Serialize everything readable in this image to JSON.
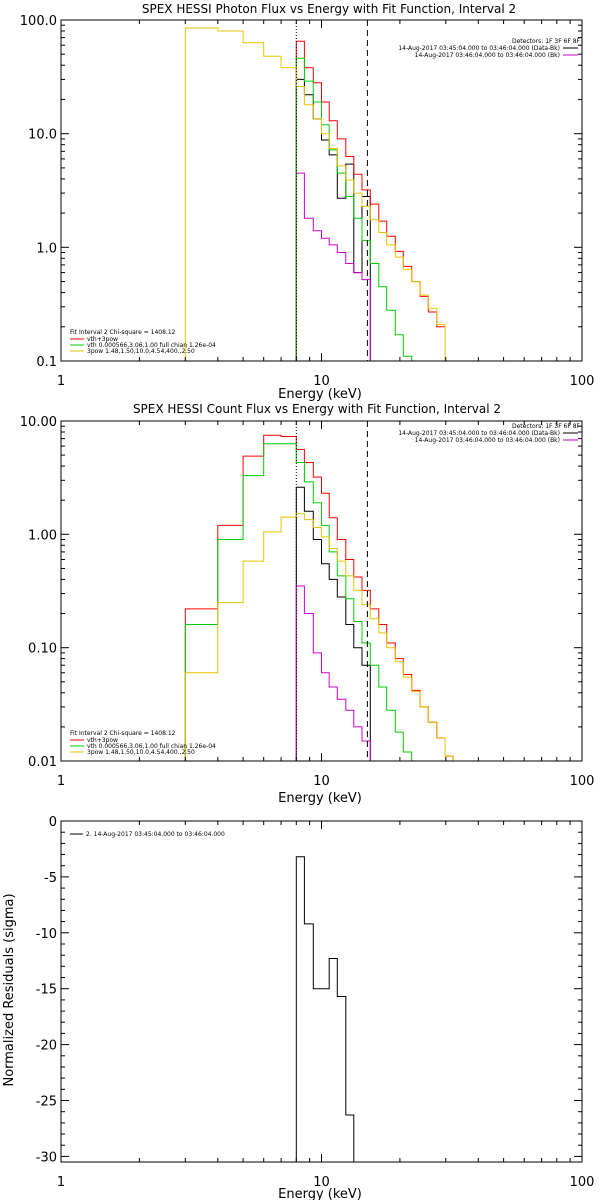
{
  "chart_data": [
    {
      "type": "line",
      "title": "SPEX HESSI Photon Flux vs Energy with Fit Function, Interval 2",
      "xlabel": "Energy (keV)",
      "ylabel": "",
      "xscale": "log",
      "yscale": "log",
      "xlim": [
        1,
        100
      ],
      "ylim": [
        0.1,
        100
      ],
      "x_ticks": [
        "1",
        "10",
        "100"
      ],
      "y_ticks": [
        "0.1",
        "1.0",
        "10.0",
        "100.0"
      ],
      "top_right": {
        "detectors": "Detectors: 1F 3F 6F 8F",
        "lines": [
          {
            "text": "14-Aug-2017 03:45:04.000 to 03:46:04.000 (Data-Bk)",
            "color": "#000000"
          },
          {
            "text": "14-Aug-2017 03:46:04.000 to 03:46:04.000 (Bk)",
            "color": "#cc00cc"
          }
        ]
      },
      "bottom_left": {
        "fit_line": "Fit Interval 2   Chi-square = 1408.12",
        "entries": [
          {
            "text": "vth+3pow",
            "color": "#ff0000"
          },
          {
            "text": "vth 0.000566,3.06,1.00  full chian 1.26e-04",
            "color": "#00cc00"
          },
          {
            "text": "3pow 1.48,1.50,10.0,4.54,400.,2.50",
            "color": "#e6c300"
          }
        ]
      },
      "vlines": [
        {
          "x": 8,
          "style": "dotted",
          "color": "#000000"
        },
        {
          "x": 15,
          "style": "dashed",
          "color": "#000000"
        }
      ],
      "series": [
        {
          "color": "#000000",
          "edges": [
            8,
            8.6,
            9.3,
            10,
            10.7,
            11.5,
            12.4,
            13.3,
            14.3,
            15.4
          ],
          "values": [
            30,
            22,
            13.5,
            8.8,
            6.5,
            2.7,
            5.4,
            0.6,
            2.8
          ]
        },
        {
          "color": "#cc00cc",
          "edges": [
            8,
            8.6,
            9.3,
            10,
            10.7,
            11.5,
            12.4,
            13.3,
            14.3,
            15.4
          ],
          "values": [
            4.5,
            1.8,
            1.4,
            1.2,
            1.05,
            0.9,
            0.72,
            0.6,
            0.52
          ]
        },
        {
          "color": "#ff0000",
          "edges": [
            8,
            8.6,
            9.3,
            10,
            10.7,
            11.5,
            12.4,
            13.3,
            14.3,
            15.4,
            16.6,
            17.8,
            19.2,
            20.6,
            22.2,
            23.9,
            25.7,
            27.7,
            29.8
          ],
          "values": [
            65,
            38,
            28,
            19,
            13,
            9,
            6.3,
            4.4,
            3.2,
            2.4,
            1.7,
            1.25,
            0.92,
            0.68,
            0.5,
            0.37,
            0.27,
            0.2
          ]
        },
        {
          "color": "#00cc00",
          "edges": [
            8,
            8.6,
            9.3,
            10,
            10.7,
            11.5,
            12.4,
            13.3,
            14.3,
            15.4,
            16.6,
            17.8,
            19.2,
            20.6,
            22.2
          ],
          "values": [
            46,
            29,
            19,
            12,
            7.2,
            4.5,
            2.8,
            1.8,
            1.15,
            0.72,
            0.45,
            0.28,
            0.17,
            0.11
          ]
        },
        {
          "color": "#e6c300",
          "edges": [
            3,
            4,
            5,
            6,
            7,
            8,
            8.6,
            9.3,
            10,
            10.7,
            11.5,
            12.4,
            13.3,
            14.3,
            15.4,
            16.6,
            17.8,
            19.2,
            20.6,
            22.2,
            23.9,
            25.7,
            27.7,
            29.8
          ],
          "values": [
            85,
            80,
            63,
            48,
            38,
            26,
            18,
            13.5,
            10,
            7.4,
            5.2,
            3.9,
            3,
            2.3,
            1.75,
            1.35,
            1.05,
            0.82,
            0.64,
            0.5,
            0.38,
            0.29,
            0.21
          ]
        }
      ]
    },
    {
      "type": "line",
      "title": "SPEX HESSI Count Flux vs Energy with Fit Function, Interval 2",
      "xlabel": "Energy (keV)",
      "ylabel": "",
      "xscale": "log",
      "yscale": "log",
      "xlim": [
        1,
        100
      ],
      "ylim": [
        0.01,
        10
      ],
      "x_ticks": [
        "1",
        "10",
        "100"
      ],
      "y_ticks": [
        "0.01",
        "0.10",
        "1.00",
        "10.00"
      ],
      "top_right": {
        "detectors": "Detectors: 1F 3F 6F 8F",
        "lines": [
          {
            "text": "14-Aug-2017 03:45:04.000 to 03:46:04.000 (Data-Bk)",
            "color": "#000000"
          },
          {
            "text": "14-Aug-2017 03:46:04.000 to 03:46:04.000 (Bk)",
            "color": "#cc00cc"
          }
        ]
      },
      "bottom_left": {
        "fit_line": "Fit Interval 2   Chi-square = 1408.12",
        "entries": [
          {
            "text": "vth+3pow",
            "color": "#ff0000"
          },
          {
            "text": "vth 0.000566,3.06,1.00  full chian 1.26e-04",
            "color": "#00cc00"
          },
          {
            "text": "3pow 1.48,1.50,10.0,4.54,400.,2.50",
            "color": "#e6c300"
          }
        ]
      },
      "vlines": [
        {
          "x": 8,
          "style": "dotted",
          "color": "#000000"
        },
        {
          "x": 15,
          "style": "dashed",
          "color": "#000000"
        }
      ],
      "series": [
        {
          "color": "#000000",
          "edges": [
            8,
            8.6,
            9.3,
            10,
            10.7,
            11.5,
            12.4,
            13.3,
            14.3,
            15.4
          ],
          "values": [
            2.6,
            1.6,
            0.9,
            0.55,
            0.4,
            0.28,
            0.16,
            0.1,
            0.07
          ]
        },
        {
          "color": "#cc00cc",
          "edges": [
            8,
            8.6,
            9.3,
            10,
            10.7,
            11.5,
            12.4,
            13.3,
            14.3,
            15.4
          ],
          "values": [
            0.35,
            0.2,
            0.09,
            0.06,
            0.045,
            0.035,
            0.028,
            0.02,
            0.015
          ]
        },
        {
          "color": "#ff0000",
          "edges": [
            3,
            4,
            5,
            6,
            7,
            8,
            8.6,
            9.3,
            10,
            10.7,
            11.5,
            12.4,
            13.3,
            14.3,
            15.4,
            16.6,
            17.8,
            19.2,
            20.6,
            22.2,
            23.9,
            25.7,
            27.7,
            29.8,
            32
          ],
          "values": [
            0.22,
            1.2,
            4.9,
            7.5,
            7.3,
            5.6,
            4.3,
            3.2,
            2.3,
            1.4,
            0.9,
            0.6,
            0.42,
            0.32,
            0.22,
            0.16,
            0.11,
            0.08,
            0.058,
            0.042,
            0.03,
            0.022,
            0.016,
            0.011
          ]
        },
        {
          "color": "#00cc00",
          "edges": [
            3,
            4,
            5,
            6,
            7,
            8,
            8.6,
            9.3,
            10,
            10.7,
            11.5,
            12.4,
            13.3,
            14.3,
            15.4,
            16.6,
            17.8,
            19.2,
            20.6,
            22.2
          ],
          "values": [
            0.16,
            0.9,
            3.3,
            6.3,
            6.3,
            4.3,
            2.9,
            1.9,
            1.2,
            0.7,
            0.43,
            0.27,
            0.17,
            0.11,
            0.07,
            0.045,
            0.028,
            0.018,
            0.012
          ]
        },
        {
          "color": "#e6c300",
          "edges": [
            3,
            4,
            5,
            6,
            7,
            8,
            8.6,
            9.3,
            10,
            10.7,
            11.5,
            12.4,
            13.3,
            14.3,
            15.4,
            16.6,
            17.8,
            19.2,
            20.6,
            22.2,
            23.9,
            25.7,
            27.7,
            29.8,
            32
          ],
          "values": [
            0.06,
            0.25,
            0.58,
            1.05,
            1.42,
            1.52,
            1.35,
            1.15,
            0.95,
            0.75,
            0.58,
            0.43,
            0.32,
            0.24,
            0.18,
            0.135,
            0.1,
            0.075,
            0.055,
            0.041,
            0.03,
            0.022,
            0.016,
            0.011
          ]
        }
      ]
    },
    {
      "type": "line",
      "title": "",
      "xlabel": "Energy (keV)",
      "ylabel": "Normalized Residuals (sigma)",
      "xscale": "log",
      "yscale": "linear",
      "xlim": [
        1,
        100
      ],
      "ylim": [
        -30.5,
        0
      ],
      "x_ticks": [
        "1",
        "10",
        "100"
      ],
      "y_ticks": [
        "0",
        "-5",
        "-10",
        "-15",
        "-20",
        "-25",
        "-30"
      ],
      "legend": {
        "text": "2. 14-Aug-2017 03:45:04.000 to 03:46:04.000",
        "color": "#000000"
      },
      "series": [
        {
          "color": "#000000",
          "edges": [
            8,
            8.6,
            9.3,
            10,
            10.7,
            11.5,
            12.4,
            13.3,
            14.3,
            15.4
          ],
          "values": [
            -3.2,
            -9.2,
            -15,
            -15,
            -12.3,
            -15.7,
            -26.3,
            -30.5,
            -30.5
          ]
        }
      ]
    }
  ]
}
